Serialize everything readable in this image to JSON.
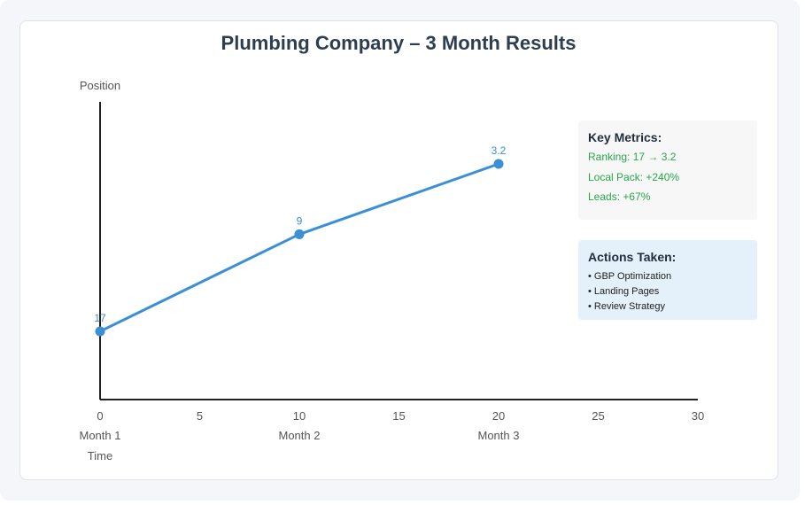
{
  "chart_data": {
    "type": "line",
    "title": "Plumbing Company – 3 Month Results",
    "xlabel": "Time",
    "ylabel": "Position",
    "x_ticks": [
      0,
      5,
      10,
      15,
      20,
      25,
      30
    ],
    "xlim": [
      0,
      30
    ],
    "category_labels": [
      {
        "x": 0,
        "label": "Month 1"
      },
      {
        "x": 10,
        "label": "Month 2"
      },
      {
        "x": 20,
        "label": "Month 3"
      }
    ],
    "series": [
      {
        "color": "#3a8fd6",
        "points": [
          {
            "x": 0,
            "y": 17,
            "label": "17"
          },
          {
            "x": 10,
            "y": 9,
            "label": "9"
          },
          {
            "x": 20,
            "y": 3.2,
            "label": "3.2"
          }
        ]
      }
    ],
    "grid": false
  },
  "metrics": {
    "title": "Key Metrics:",
    "lines": [
      "Ranking: 17 → 3.2",
      "Local Pack: +240%",
      "Leads: +67%"
    ],
    "color": "#27a54a"
  },
  "actions": {
    "title": "Actions Taken:",
    "lines": [
      "• GBP Optimization",
      "• Landing Pages",
      "• Review Strategy"
    ]
  }
}
